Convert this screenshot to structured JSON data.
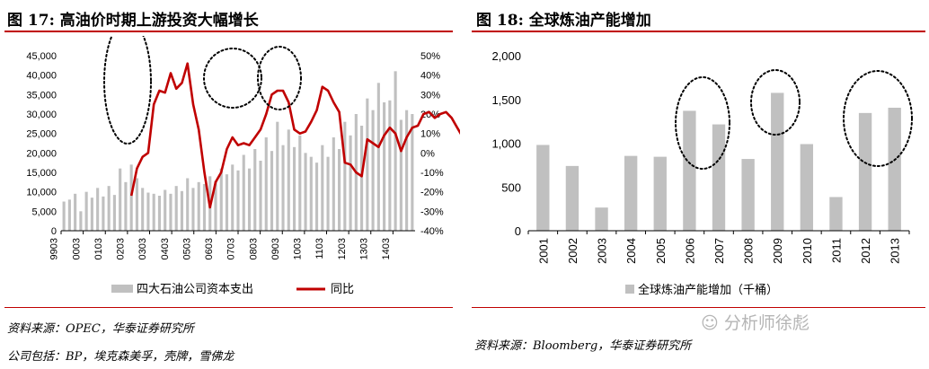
{
  "left": {
    "title": "图 17:  高油价时期上游投资大幅增长",
    "source": "资料来源：OPEC，华泰证券研究所",
    "note": "公司包括：BP，埃克森美孚，壳牌，雪佛龙",
    "legend_bar": "四大石油公司资本支出",
    "legend_line": "同比"
  },
  "right": {
    "title": "图 18:  全球炼油产能增加",
    "source": "资料来源：Bloomberg，华泰证券研究所",
    "legend_bar": "全球炼油产能增加（千桶）"
  },
  "watermark": "分析师徐彪",
  "colors": {
    "bar": "#c0c0c0",
    "line": "#c00000",
    "rule": "#c00000",
    "circle": "#000000"
  },
  "chart_data": [
    {
      "type": "bar+line",
      "x_ticks": [
        "9903",
        "0003",
        "0103",
        "0203",
        "0303",
        "0403",
        "0503",
        "0603",
        "0703",
        "0803",
        "0903",
        "1003",
        "1103",
        "1203",
        "1303",
        "1403"
      ],
      "y_left_ticks": [
        "0",
        "5,000",
        "10,000",
        "15,000",
        "20,000",
        "25,000",
        "30,000",
        "35,000",
        "40,000",
        "45,000"
      ],
      "y_right_ticks": [
        "-40%",
        "-30%",
        "-20%",
        "-10%",
        "0%",
        "10%",
        "20%",
        "30%",
        "40%",
        "50%"
      ],
      "ylim_left": [
        0,
        45000
      ],
      "ylim_right": [
        -40,
        50
      ],
      "series": [
        {
          "name": "四大石油公司资本支出",
          "type": "bar",
          "values": [
            7500,
            8000,
            9500,
            5000,
            10000,
            8500,
            11000,
            8800,
            11500,
            9200,
            16000,
            12500,
            17000,
            13500,
            11000,
            9800,
            9500,
            9000,
            10500,
            9500,
            11500,
            10200,
            13500,
            11000,
            12500,
            12000,
            14000,
            12800,
            16000,
            14500,
            17000,
            15500,
            19500,
            16000,
            21000,
            18000,
            24000,
            20500,
            28000,
            22000,
            26000,
            21500,
            24500,
            20000,
            19000,
            17500,
            22000,
            19000,
            24000,
            21000,
            28000,
            24500,
            30000,
            27000,
            34000,
            31000,
            38000,
            33000,
            33500,
            41000,
            28500,
            31000,
            30000
          ],
          "start_index": 0
        },
        {
          "name": "同比",
          "type": "line",
          "values": [
            null,
            null,
            null,
            null,
            null,
            null,
            null,
            null,
            null,
            null,
            null,
            null,
            -22,
            -8,
            -2,
            0,
            25,
            32,
            31,
            41,
            33,
            36,
            46,
            25,
            12,
            -10,
            -28,
            -15,
            -10,
            2,
            8,
            4,
            5,
            4,
            8,
            12,
            20,
            30,
            32,
            32,
            26,
            12,
            10,
            11,
            16,
            22,
            34,
            32,
            26,
            21,
            -5,
            -6,
            -10,
            -12,
            7,
            5,
            3,
            9,
            13,
            10,
            1,
            8,
            13,
            14,
            20,
            21,
            18,
            20,
            21,
            18,
            13,
            8,
            2,
            -4
          ]
        }
      ],
      "annotations": [
        "dotted ellipse around 0103-0203 peak",
        "dotted ellipse around 0603-0703 peak",
        "dotted ellipse around 0803-0903 peak"
      ]
    },
    {
      "type": "bar",
      "categories": [
        "2001",
        "2002",
        "2003",
        "2004",
        "2005",
        "2006",
        "2007",
        "2008",
        "2009",
        "2010",
        "2011",
        "2012",
        "2013"
      ],
      "values": [
        980,
        740,
        265,
        855,
        845,
        1370,
        1215,
        820,
        1575,
        990,
        385,
        1345,
        1405
      ],
      "y_ticks": [
        "0",
        "500",
        "1,000",
        "1,500",
        "2,000"
      ],
      "ylim": [
        0,
        2000
      ],
      "series": [
        {
          "name": "全球炼油产能增加（千桶）"
        }
      ],
      "annotations": [
        "dotted ellipse around 2006-2007",
        "dotted ellipse around 2009",
        "dotted ellipse around 2012-2013"
      ]
    }
  ]
}
